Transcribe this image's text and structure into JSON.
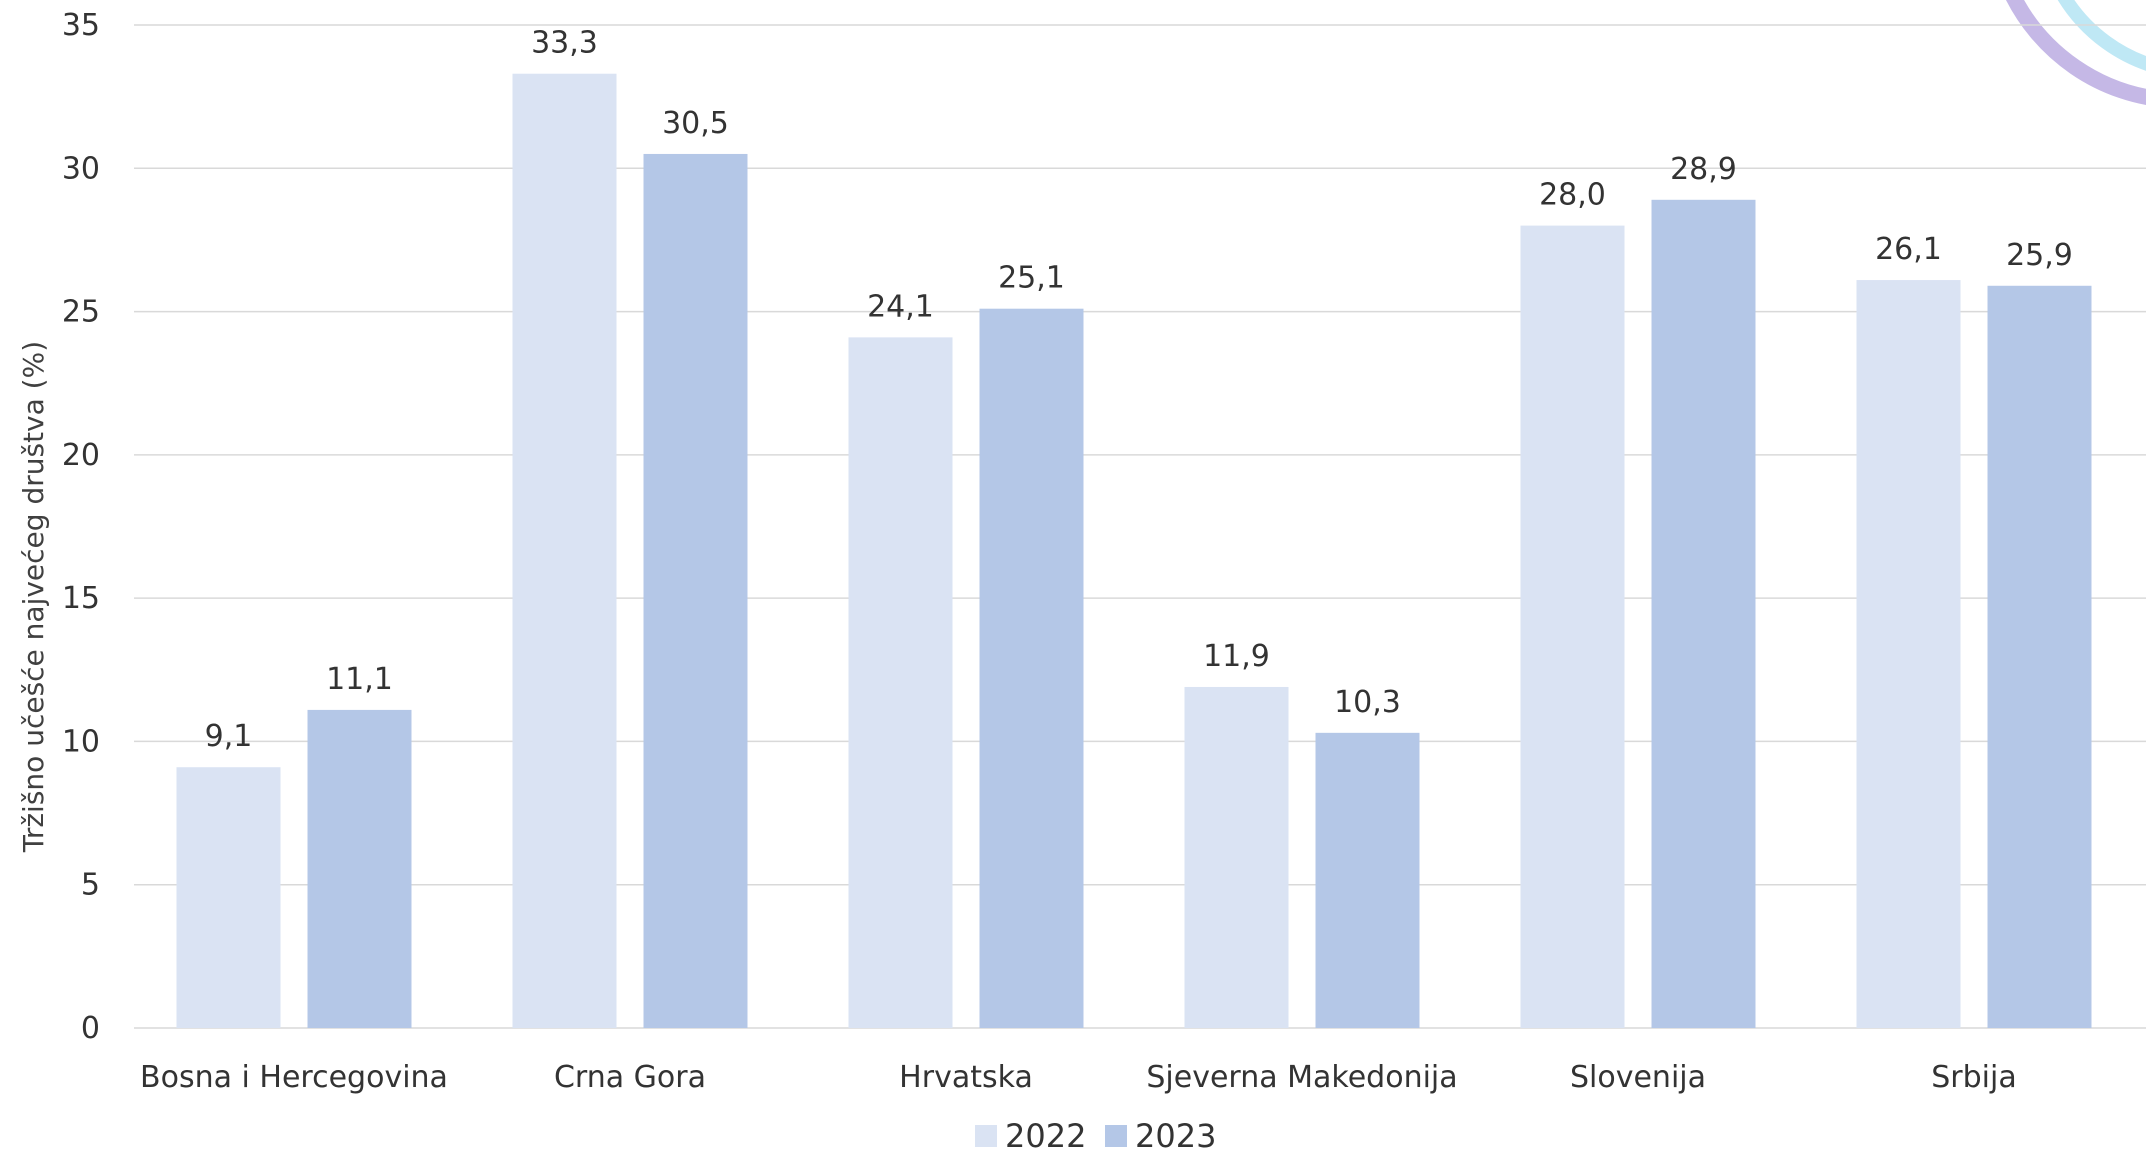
{
  "chart_data": {
    "type": "bar",
    "title": "",
    "xlabel": "",
    "ylabel": "Tržišno učešće najvećeg društva (%)",
    "ylim": [
      0,
      35
    ],
    "yticks": [
      0,
      5,
      10,
      15,
      20,
      25,
      30,
      35
    ],
    "grid": true,
    "legend_position": "bottom-center",
    "categories": [
      "Bosna i Hercegovina",
      "Crna Gora",
      "Hrvatska",
      "Sjeverna Makedonija",
      "Slovenija",
      "Srbija"
    ],
    "series": [
      {
        "name": "2022",
        "color": "#dae3f3",
        "values": [
          9.1,
          33.3,
          24.1,
          11.9,
          28.0,
          26.1
        ],
        "labels": [
          "9,1",
          "33,3",
          "24,1",
          "11,9",
          "28,0",
          "26,1"
        ]
      },
      {
        "name": "2023",
        "color": "#b4c7e7",
        "values": [
          11.1,
          30.5,
          25.1,
          10.3,
          28.9,
          25.9
        ],
        "labels": [
          "11,1",
          "30,5",
          "25,1",
          "10,3",
          "28,9",
          "25,9"
        ]
      }
    ],
    "colors": {
      "gridline": "#d9d9d9",
      "text": "#333333",
      "decoration_light_blue": "#bfe8f5",
      "decoration_lavender": "#c5b8e6"
    }
  }
}
